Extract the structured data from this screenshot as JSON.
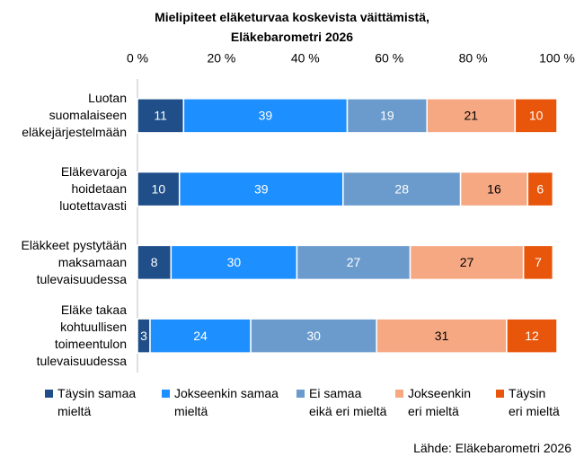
{
  "chart_data": {
    "type": "stacked-bar-horizontal",
    "title": "Mielipiteet eläketurvaa koskevista väittämistä,\nEläkebarometri 2026",
    "source": "Lähde: Eläkebarometri 2026",
    "categories": [
      "Luotan\nsuomalaiseen\neläkejärjestelmään",
      "Eläkevaroja\nhoidetaan\nluotettavasti",
      "Eläkkeet pystytään\nmaksamaan\ntulevaisuudessa",
      "Eläke takaa\nkohtuullisen\ntoimeentulon\ntulevaisuudessa"
    ],
    "series": [
      {
        "name": "Täysin samaa\nmieltä",
        "color": "#1f4e89",
        "values": [
          11,
          10,
          8,
          3
        ]
      },
      {
        "name": "Jokseenkin samaa\nmieltä",
        "color": "#1e8fff",
        "values": [
          39,
          39,
          30,
          24
        ]
      },
      {
        "name": "Ei samaa\neikä eri mieltä",
        "color": "#6b9bcd",
        "values": [
          19,
          28,
          27,
          30
        ]
      },
      {
        "name": "Jokseenkin\neri mieltä",
        "color": "#f6a883",
        "values": [
          21,
          16,
          27,
          31
        ]
      },
      {
        "name": "Täysin\neri mieltä",
        "color": "#e8560c",
        "values": [
          10,
          6,
          7,
          12
        ]
      }
    ],
    "xlim": [
      0,
      100
    ],
    "xticks": [
      {
        "value": 0,
        "label": "0 %"
      },
      {
        "value": 20,
        "label": "20 %"
      },
      {
        "value": 40,
        "label": "40 %"
      },
      {
        "value": 60,
        "label": "60 %"
      },
      {
        "value": 80,
        "label": "80 %"
      },
      {
        "value": 100,
        "label": "100 %"
      }
    ],
    "legend": "bottom"
  }
}
